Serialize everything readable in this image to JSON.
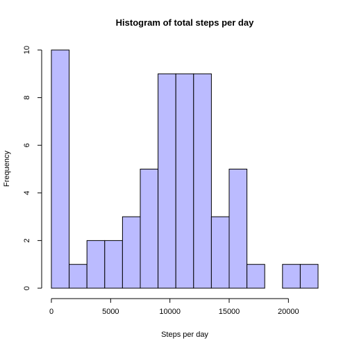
{
  "chart_data": {
    "type": "bar",
    "title": "Histogram of total steps per day",
    "xlabel": "Steps per day",
    "ylabel": "Frequency",
    "bar_color": "#bbbbff",
    "bin_edges": [
      0,
      1500,
      3000,
      4500,
      6000,
      7500,
      9000,
      10500,
      12000,
      13500,
      15000,
      16500,
      18000,
      19500,
      21000,
      22500
    ],
    "values": [
      10,
      1,
      2,
      2,
      3,
      5,
      9,
      9,
      9,
      3,
      5,
      1,
      0,
      1,
      1
    ],
    "xlim": [
      0,
      22500
    ],
    "ylim": [
      0,
      10
    ],
    "x_ticks": [
      0,
      5000,
      10000,
      15000,
      20000
    ],
    "y_ticks": [
      0,
      2,
      4,
      6,
      8,
      10
    ],
    "grid": false
  }
}
